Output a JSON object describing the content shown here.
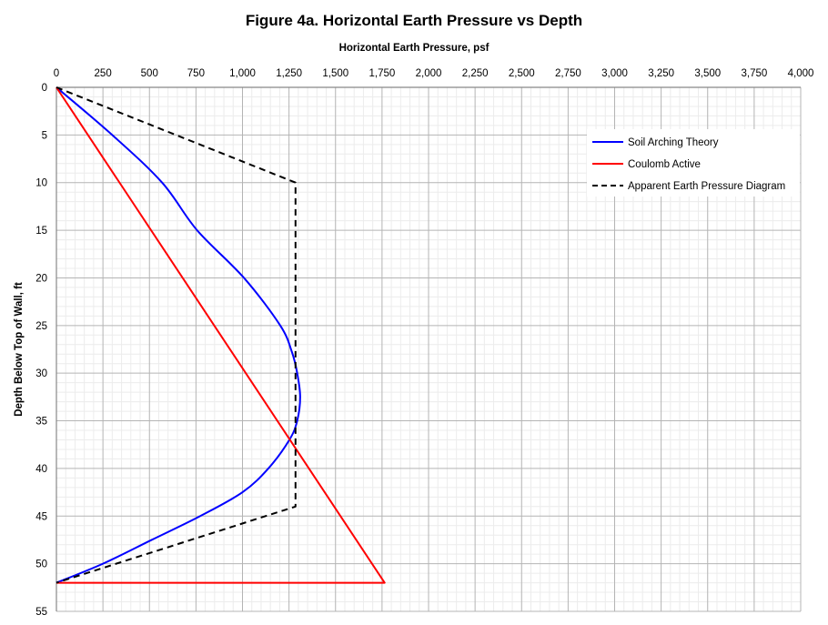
{
  "chart_data": {
    "type": "line",
    "title": "Figure 4a.  Horizontal Earth Pressure vs Depth",
    "xlabel": "Horizontal Earth Pressure, psf",
    "ylabel": "Depth Below Top of Wall, ft",
    "xlim": [
      0,
      4000
    ],
    "ylim": [
      0,
      55
    ],
    "y_inverted": true,
    "x_axis_position": "top",
    "x_ticks": [
      "0",
      "250",
      "500",
      "750",
      "1,000",
      "1,250",
      "1,500",
      "1,750",
      "2,000",
      "2,250",
      "2,500",
      "2,750",
      "3,000",
      "3,250",
      "3,500",
      "3,750",
      "4,000"
    ],
    "y_ticks": [
      "0",
      "5",
      "10",
      "15",
      "20",
      "25",
      "30",
      "35",
      "40",
      "45",
      "50",
      "55"
    ],
    "grid": true,
    "legend_position": "top-right",
    "series": [
      {
        "name": "Soil Arching Theory",
        "color": "#0000ff",
        "style": "solid",
        "points": [
          [
            0,
            0
          ],
          [
            300,
            5
          ],
          [
            568,
            10
          ],
          [
            756,
            15
          ],
          [
            1008,
            20
          ],
          [
            1203,
            25
          ],
          [
            1266,
            27.8
          ],
          [
            1294,
            30
          ],
          [
            1310,
            32.5
          ],
          [
            1294,
            35
          ],
          [
            1252,
            37
          ],
          [
            1139,
            40
          ],
          [
            1000,
            42.5
          ],
          [
            773,
            45
          ],
          [
            512,
            47.5
          ],
          [
            250,
            50
          ],
          [
            0,
            52
          ]
        ]
      },
      {
        "name": "Coulomb Active",
        "color": "#ff0000",
        "style": "solid",
        "points": [
          [
            0,
            0
          ],
          [
            1764,
            52
          ],
          [
            0,
            52
          ]
        ]
      },
      {
        "name": "Apparent Earth Pressure Diagram",
        "color": "#000000",
        "style": "dashed",
        "points": [
          [
            0,
            0
          ],
          [
            1285,
            10
          ],
          [
            1285,
            44
          ],
          [
            0,
            52
          ]
        ]
      }
    ]
  }
}
